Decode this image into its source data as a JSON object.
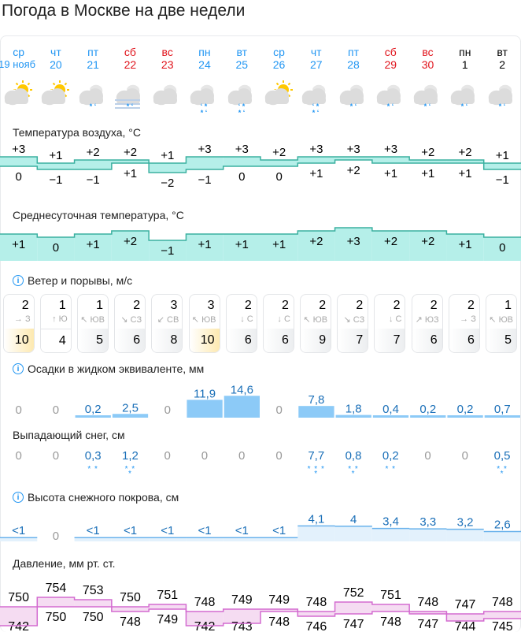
{
  "title": "Погода в Москве на две недели",
  "days": [
    {
      "name": "ср",
      "date": "19 нояб",
      "type": "weekday",
      "icon": "partly-cloudy-sun",
      "precip": ""
    },
    {
      "name": "чт",
      "date": "20",
      "type": "weekday",
      "icon": "partly-cloudy-sun",
      "precip": ""
    },
    {
      "name": "пт",
      "date": "21",
      "type": "weekday",
      "icon": "cloudy-light-snow-rain",
      "precip": "* ʻ"
    },
    {
      "name": "сб",
      "date": "22",
      "type": "weekend",
      "icon": "cloudy-fog-snow-rain",
      "precip": "* ʻ"
    },
    {
      "name": "вс",
      "date": "23",
      "type": "weekend",
      "icon": "cloudy",
      "precip": ""
    },
    {
      "name": "пн",
      "date": "24",
      "type": "weekday",
      "icon": "cloudy-snow-rain",
      "precip": "ʻ *\n* ʻ"
    },
    {
      "name": "вт",
      "date": "25",
      "type": "weekday",
      "icon": "cloudy-snow-rain",
      "precip": "ʻ *\n* ʻ"
    },
    {
      "name": "ср",
      "date": "26",
      "type": "weekday",
      "icon": "partly-cloudy-sun",
      "precip": ""
    },
    {
      "name": "чт",
      "date": "27",
      "type": "weekday",
      "icon": "cloudy-snow-rain",
      "precip": "ʻ *\n* ʻ"
    },
    {
      "name": "пт",
      "date": "28",
      "type": "weekday",
      "icon": "cloudy-light-snow-rain",
      "precip": "* ʻ"
    },
    {
      "name": "сб",
      "date": "29",
      "type": "weekend",
      "icon": "cloudy-light-snow-rain",
      "precip": "* ʻ"
    },
    {
      "name": "вс",
      "date": "30",
      "type": "weekend",
      "icon": "cloudy-light-snow-rain",
      "precip": "* ʻ"
    },
    {
      "name": "пн",
      "date": "1",
      "type": "nextmonth",
      "icon": "cloudy-light-snow-rain",
      "precip": "* ʻ"
    },
    {
      "name": "вт",
      "date": "2",
      "type": "nextmonth",
      "icon": "cloudy-light-snow-rain",
      "precip": "* ʻ"
    }
  ],
  "temperature": {
    "label": "Температура воздуха, °C",
    "max": [
      "+3",
      "+1",
      "+2",
      "+2",
      "+1",
      "+3",
      "+3",
      "+2",
      "+3",
      "+3",
      "+3",
      "+2",
      "+2",
      "+1"
    ],
    "min": [
      "0",
      "−1",
      "−1",
      "+1",
      "−2",
      "−1",
      "0",
      "0",
      "+1",
      "+2",
      "+1",
      "+1",
      "+1",
      "−1"
    ]
  },
  "avg_temperature": {
    "label": "Среднесуточная температура, °C",
    "values": [
      "+1",
      "0",
      "+1",
      "+2",
      "−1",
      "+1",
      "+1",
      "+1",
      "+2",
      "+3",
      "+2",
      "+2",
      "+1",
      "0"
    ]
  },
  "wind": {
    "label": "Ветер и порывы, м/с",
    "speed": [
      "2",
      "1",
      "1",
      "2",
      "3",
      "3",
      "2",
      "2",
      "2",
      "2",
      "2",
      "2",
      "2",
      "1"
    ],
    "direction": [
      "→ З",
      "↑ Ю",
      "↖ ЮВ",
      "↘ СЗ",
      "↙ СВ",
      "↖ ЮВ",
      "↓ С",
      "↓ С",
      "↖ ЮВ",
      "↘ СЗ",
      "↓ С",
      "↗ ЮЗ",
      "→ З",
      "↖ ЮВ"
    ],
    "gusts": [
      "10",
      "4",
      "5",
      "6",
      "8",
      "10",
      "6",
      "6",
      "9",
      "7",
      "7",
      "6",
      "6",
      "5"
    ]
  },
  "precipitation": {
    "label": "Осадки в жидком эквиваленте, мм",
    "values": [
      "0",
      "0",
      "0,2",
      "2,5",
      "0",
      "11,9",
      "14,6",
      "0",
      "7,8",
      "1,8",
      "0,4",
      "0,2",
      "0,2",
      "0,7"
    ]
  },
  "snowfall": {
    "label": "Выпадающий снег, см",
    "values": [
      "0",
      "0",
      "0,3",
      "1,2",
      "0",
      "0",
      "0",
      "0",
      "7,7",
      "0,8",
      "0,2",
      "0",
      "0",
      "0,5"
    ],
    "flakes": [
      "",
      "",
      "* *",
      "* *\n*",
      "",
      "",
      "",
      "",
      "* * *\n*",
      "* *\n*",
      "* *",
      "",
      "",
      "* *\n*"
    ]
  },
  "snow_depth": {
    "label": "Высота снежного покрова, см",
    "values": [
      "<1",
      "0",
      "<1",
      "<1",
      "<1",
      "<1",
      "<1",
      "<1",
      "4,1",
      "4",
      "3,4",
      "3,3",
      "3,2",
      "2,6"
    ]
  },
  "pressure": {
    "label": "Давление, мм рт. ст.",
    "max": [
      "750",
      "754",
      "753",
      "750",
      "751",
      "748",
      "749",
      "749",
      "748",
      "752",
      "751",
      "748",
      "747",
      "748"
    ],
    "min": [
      "742",
      "750",
      "750",
      "748",
      "749",
      "742",
      "743",
      "748",
      "746",
      "747",
      "748",
      "747",
      "744",
      "745"
    ]
  },
  "colors": {
    "accent": "#2196f3",
    "weekend": "#e0121a",
    "temp_band": "#b5efe9",
    "temp_line": "#3bb0a0",
    "precip": "#8ccaf7",
    "pressure_band": "#f5dcf2",
    "pressure_line": "#d36bd0",
    "gust_strong": "#fde9b0"
  }
}
